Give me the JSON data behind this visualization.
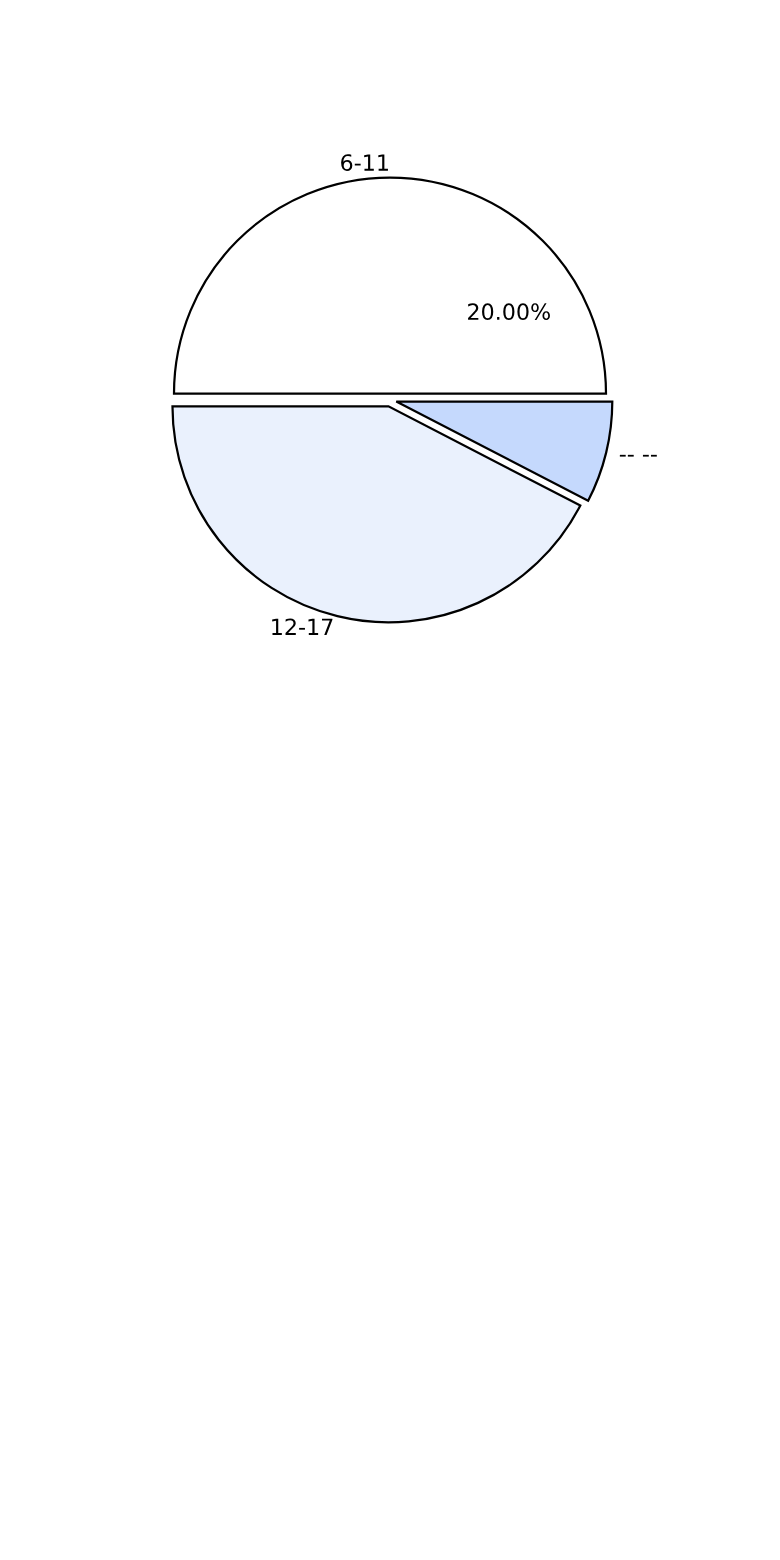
{
  "chart_data": {
    "type": "pie",
    "categories": [
      "6-11",
      "12-17",
      "-- --"
    ],
    "values": [
      50,
      42.4,
      7.6
    ],
    "colors": [
      "#ffffff",
      "#eaf1fd",
      "#c5d9fd"
    ],
    "annotations": [
      "20.00%"
    ],
    "legend": false
  }
}
